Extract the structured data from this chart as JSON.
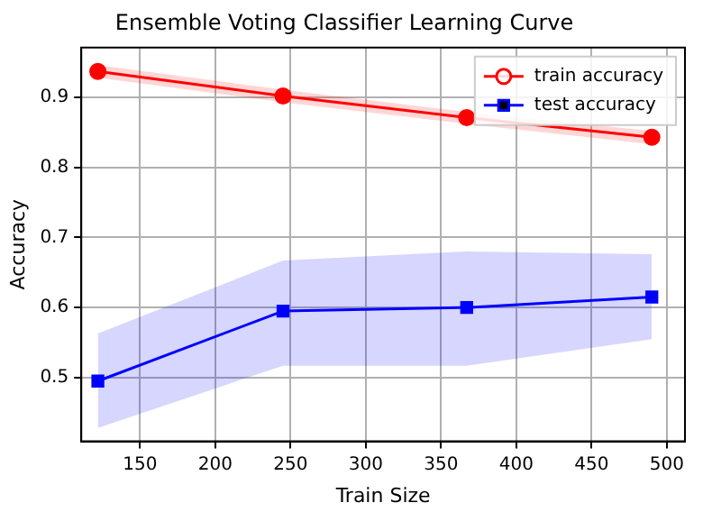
{
  "chart_data": {
    "type": "line",
    "title": "Ensemble Voting Classifier Learning Curve",
    "xlabel": "Train Size",
    "ylabel": "Accuracy",
    "x": [
      122,
      245,
      367,
      490
    ],
    "series": [
      {
        "name": "train accuracy",
        "color": "#ff0000",
        "marker": "circle",
        "values": [
          0.937,
          0.902,
          0.871,
          0.843
        ],
        "lower": [
          0.928,
          0.893,
          0.862,
          0.833
        ],
        "upper": [
          0.946,
          0.911,
          0.879,
          0.852
        ]
      },
      {
        "name": "test accuracy",
        "color": "#0000ff",
        "marker": "square",
        "values": [
          0.495,
          0.595,
          0.6,
          0.615
        ],
        "lower": [
          0.428,
          0.517,
          0.517,
          0.555
        ],
        "upper": [
          0.563,
          0.667,
          0.68,
          0.676
        ]
      }
    ],
    "xlim": [
      111,
      512
    ],
    "xticks": [
      150,
      200,
      250,
      300,
      350,
      400,
      450,
      500
    ],
    "ylim": [
      0.409,
      0.971
    ],
    "yticks": [
      0.5,
      0.6,
      0.7,
      0.8,
      0.9
    ],
    "grid": true,
    "legend": "top right",
    "line_style": "solid"
  }
}
